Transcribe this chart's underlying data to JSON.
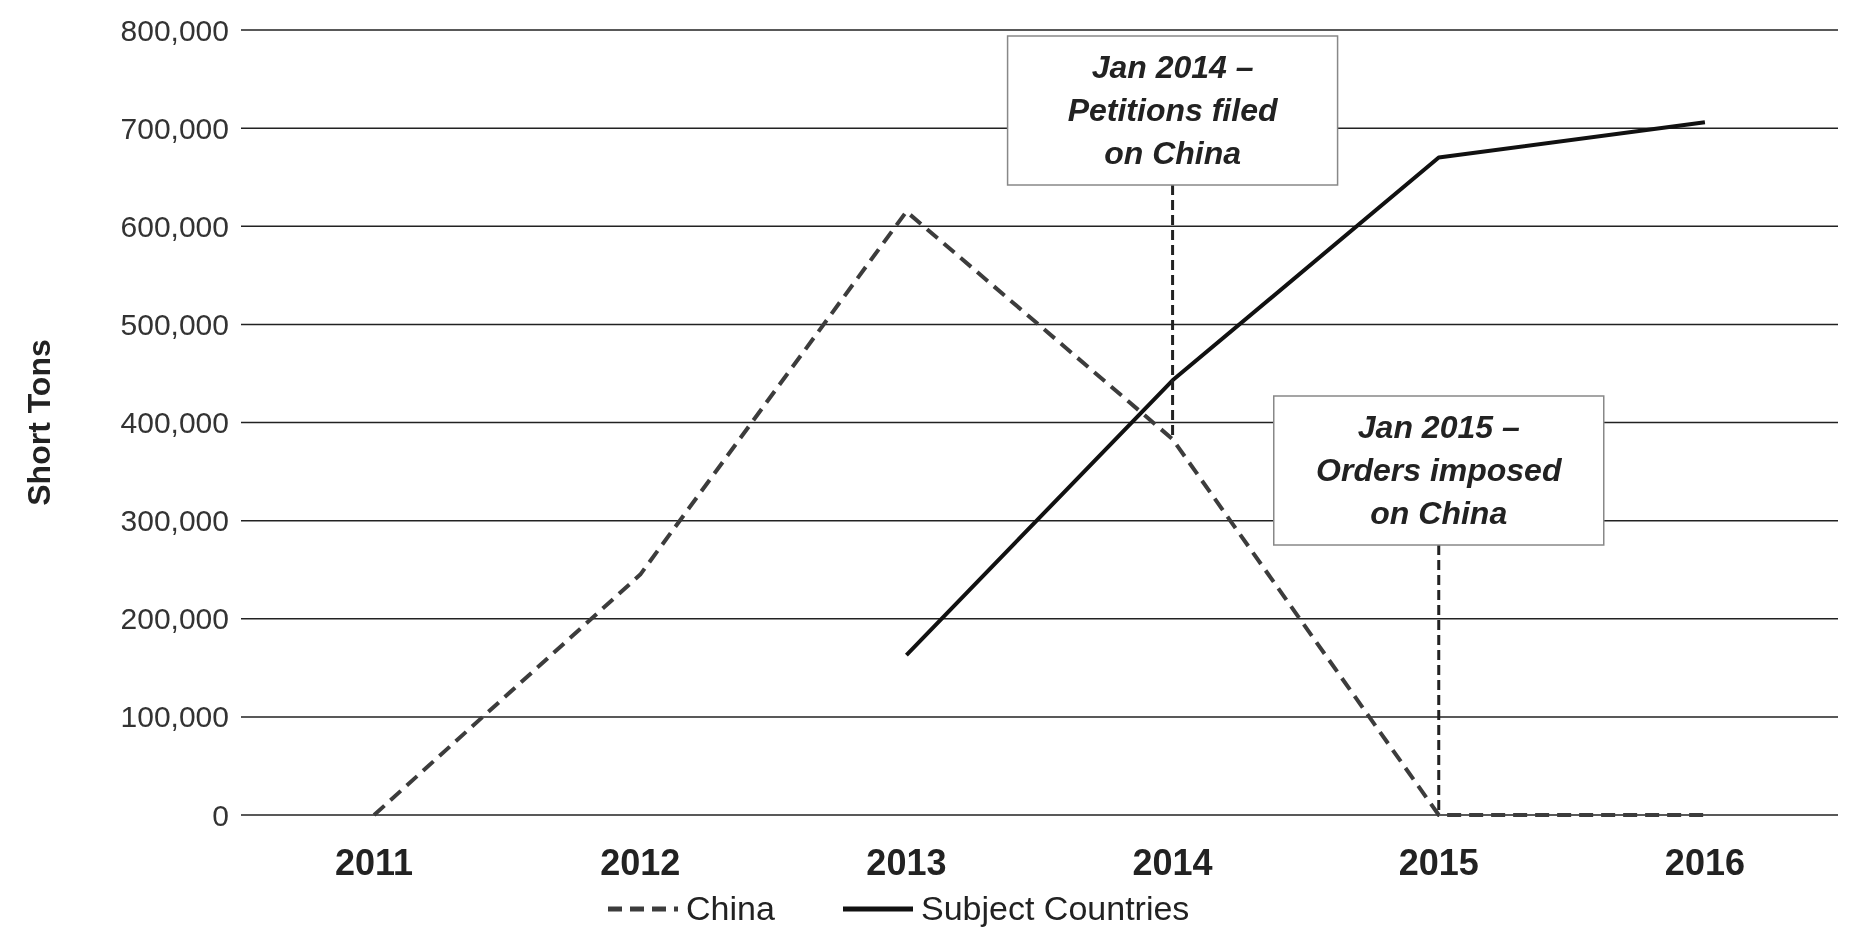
{
  "chart_data": {
    "type": "line",
    "ylabel": "Short Tons",
    "categories": [
      "2011",
      "2012",
      "2013",
      "2014",
      "2015",
      "2016"
    ],
    "series": [
      {
        "name": "China",
        "color": "#3c3c3c",
        "line_style": "dashed",
        "values": [
          0,
          245000,
          615000,
          383000,
          0,
          0
        ]
      },
      {
        "name": "Subject Countries",
        "color": "#111111",
        "line_style": "solid",
        "values": [
          null,
          null,
          163000,
          443000,
          670000,
          706000
        ]
      }
    ],
    "ylim": [
      0,
      800000
    ],
    "yticks": [
      {
        "value": 0,
        "label": "0"
      },
      {
        "value": 100000,
        "label": "100,000"
      },
      {
        "value": 200000,
        "label": "200,000"
      },
      {
        "value": 300000,
        "label": "300,000"
      },
      {
        "value": 400000,
        "label": "400,000"
      },
      {
        "value": 500000,
        "label": "500,000"
      },
      {
        "value": 600000,
        "label": "600,000"
      },
      {
        "value": 700000,
        "label": "700,000"
      },
      {
        "value": 800000,
        "label": "800,000"
      }
    ],
    "grid": "y",
    "legend": "bottom",
    "annotations": [
      {
        "text": "Jan 2014 –\nPetitions filed\non China",
        "x": "2014",
        "y": 383000
      },
      {
        "text": "Jan 2015 –\nOrders imposed\non China",
        "x": "2015",
        "y": 0
      }
    ]
  }
}
